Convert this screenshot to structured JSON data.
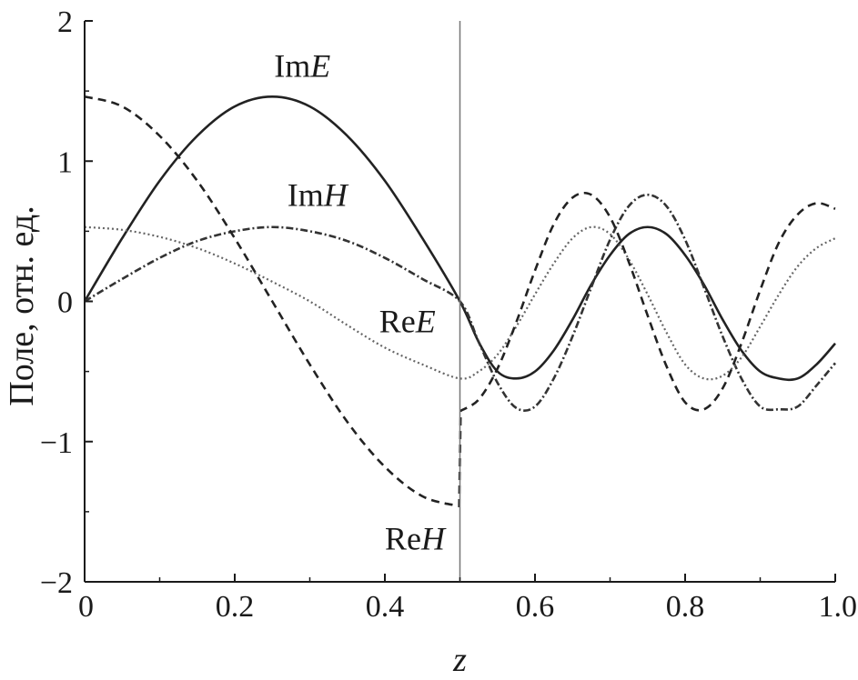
{
  "chart_data": {
    "type": "line",
    "title": "",
    "xlabel": "z",
    "ylabel": "Поле, отн. ед.",
    "xlim": [
      0,
      1.0
    ],
    "ylim": [
      -2,
      2
    ],
    "x_ticks": [
      0,
      0.2,
      0.4,
      0.6,
      0.8,
      1.0
    ],
    "x_tick_labels": [
      "0",
      "0.2",
      "0.4",
      "0.6",
      "0.8",
      "1.0"
    ],
    "y_ticks": [
      -2,
      -1,
      0,
      1,
      2
    ],
    "y_tick_labels": [
      "−2",
      "−1",
      "0",
      "1",
      "2"
    ],
    "grid": false,
    "interface_line": {
      "x": 0.5,
      "color": "#777777"
    },
    "series": [
      {
        "name": "ImE",
        "style": "solid",
        "color": "#222222",
        "x": [
          0,
          0.05,
          0.1,
          0.15,
          0.2,
          0.25,
          0.3,
          0.35,
          0.4,
          0.45,
          0.5,
          0.525,
          0.55,
          0.575,
          0.6,
          0.625,
          0.65,
          0.675,
          0.7,
          0.725,
          0.75,
          0.775,
          0.8,
          0.825,
          0.85,
          0.875,
          0.9,
          0.925,
          0.95,
          0.975,
          1.0
        ],
        "values": [
          0,
          0.45,
          0.86,
          1.18,
          1.39,
          1.46,
          1.39,
          1.18,
          0.86,
          0.45,
          0,
          -0.29,
          -0.5,
          -0.55,
          -0.5,
          -0.35,
          -0.13,
          0.12,
          0.33,
          0.48,
          0.53,
          0.48,
          0.33,
          0.12,
          -0.13,
          -0.35,
          -0.5,
          -0.55,
          -0.55,
          -0.45,
          -0.3
        ]
      },
      {
        "name": "ImH",
        "style": "dashdot",
        "color": "#333333",
        "x": [
          0,
          0.05,
          0.1,
          0.15,
          0.2,
          0.25,
          0.3,
          0.35,
          0.4,
          0.45,
          0.5,
          0.525,
          0.55,
          0.575,
          0.6,
          0.625,
          0.65,
          0.675,
          0.7,
          0.725,
          0.75,
          0.775,
          0.8,
          0.825,
          0.85,
          0.875,
          0.9,
          0.925,
          0.95,
          0.975,
          1.0
        ],
        "values": [
          0,
          0.16,
          0.31,
          0.43,
          0.5,
          0.53,
          0.5,
          0.43,
          0.31,
          0.16,
          0,
          -0.29,
          -0.58,
          -0.76,
          -0.75,
          -0.55,
          -0.25,
          0.1,
          0.44,
          0.68,
          0.76,
          0.68,
          0.44,
          0.1,
          -0.25,
          -0.55,
          -0.75,
          -0.77,
          -0.75,
          -0.6,
          -0.44
        ]
      },
      {
        "name": "ReE",
        "style": "dotted",
        "color": "#666666",
        "x": [
          0,
          0.05,
          0.1,
          0.15,
          0.2,
          0.25,
          0.3,
          0.35,
          0.4,
          0.45,
          0.5,
          0.525,
          0.55,
          0.575,
          0.6,
          0.625,
          0.65,
          0.675,
          0.7,
          0.725,
          0.75,
          0.775,
          0.8,
          0.825,
          0.85,
          0.875,
          0.9,
          0.925,
          0.95,
          0.975,
          1.0
        ],
        "values": [
          0.53,
          0.51,
          0.46,
          0.38,
          0.27,
          0.14,
          0,
          -0.17,
          -0.33,
          -0.45,
          -0.55,
          -0.5,
          -0.38,
          -0.18,
          0.05,
          0.27,
          0.45,
          0.53,
          0.48,
          0.3,
          0.05,
          -0.22,
          -0.45,
          -0.55,
          -0.53,
          -0.4,
          -0.18,
          0.05,
          0.25,
          0.38,
          0.45
        ]
      },
      {
        "name": "ReH",
        "style": "dashed",
        "color": "#222222",
        "x": [
          0,
          0.05,
          0.1,
          0.15,
          0.2,
          0.25,
          0.3,
          0.35,
          0.4,
          0.45,
          0.499,
          0.501,
          0.525,
          0.55,
          0.575,
          0.6,
          0.625,
          0.65,
          0.675,
          0.7,
          0.725,
          0.75,
          0.775,
          0.8,
          0.825,
          0.85,
          0.875,
          0.9,
          0.925,
          0.95,
          0.975,
          1.0
        ],
        "values": [
          1.46,
          1.39,
          1.18,
          0.86,
          0.45,
          0,
          -0.45,
          -0.86,
          -1.18,
          -1.39,
          -1.46,
          -0.78,
          -0.7,
          -0.48,
          -0.15,
          0.22,
          0.55,
          0.74,
          0.76,
          0.6,
          0.28,
          -0.1,
          -0.46,
          -0.72,
          -0.77,
          -0.62,
          -0.3,
          0.08,
          0.42,
          0.62,
          0.7,
          0.66
        ]
      }
    ],
    "annotations": [
      {
        "name": "Im",
        "var": "E",
        "series": "ImE",
        "x": 0.29,
        "y": 1.6
      },
      {
        "name": "Im",
        "var": "H",
        "series": "ImH",
        "x": 0.31,
        "y": 0.68
      },
      {
        "name": "Re",
        "var": "E",
        "series": "ReE",
        "x": 0.43,
        "y": -0.22
      },
      {
        "name": "Re",
        "var": "H",
        "series": "ReH",
        "x": 0.44,
        "y": -1.77
      }
    ]
  }
}
